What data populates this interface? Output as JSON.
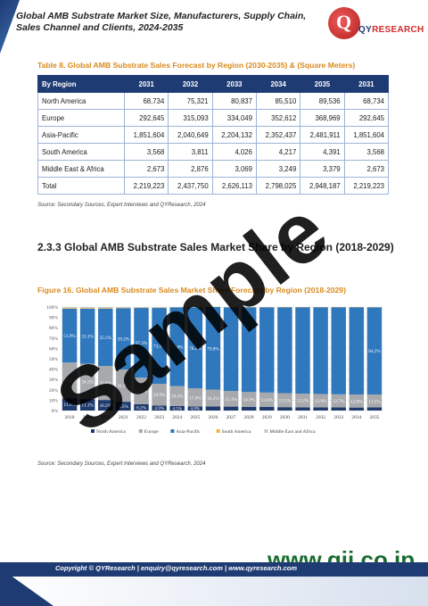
{
  "header": {
    "title": "Global AMB Substrate Market Size, Manufacturers, Supply Chain, Sales Channel and Clients, 2024-2035",
    "logo_q": "Q",
    "logo_brand_a": "QY",
    "logo_brand_b": "RESEARCH"
  },
  "table8": {
    "title": "Table 8.  Global AMB Substrate Sales Forecast by Region (2030-2035) & (Square Meters)",
    "columns": [
      "By Region",
      "2031",
      "2032",
      "2033",
      "2034",
      "2035",
      "2031"
    ],
    "rows": [
      [
        "North America",
        "68,734",
        "75,321",
        "80,837",
        "85,510",
        "89,536",
        "68,734"
      ],
      [
        "Europe",
        "292,645",
        "315,093",
        "334,049",
        "352,612",
        "368,969",
        "292,645"
      ],
      [
        "Asia-Pacific",
        "1,851,604",
        "2,040,649",
        "2,204,132",
        "2,352,437",
        "2,481,911",
        "1,851,604"
      ],
      [
        "South America",
        "3,568",
        "3,811",
        "4,026",
        "4,217",
        "4,391",
        "3,568"
      ],
      [
        "Middle East & Africa",
        "2,673",
        "2,876",
        "3,069",
        "3,249",
        "3,379",
        "2,673"
      ],
      [
        "Total",
        "2,219,223",
        "2,437,750",
        "2,626,113",
        "2,798,025",
        "2,948,187",
        "2,219,223"
      ]
    ],
    "source": "Source: Secondary Sources, Expert Interviews and QYResearch, 2024"
  },
  "section": {
    "title": "2.3.3 Global AMB Substrate Sales Market Share by Region (2018-2029)"
  },
  "figure16": {
    "title": "Figure 16.  Global AMB Substrate Sales Market Share Forecast by Region (2018-2029)",
    "source": "Source: Secondary Sources, Expert Interviews and QYResearch, 2024"
  },
  "chart_data": {
    "type": "bar",
    "stacked": true,
    "categories": [
      "2018",
      "2019",
      "2020",
      "2021",
      "2022",
      "2023",
      "2024",
      "2025",
      "2026",
      "2027",
      "2028",
      "2029",
      "2030",
      "2031",
      "2032",
      "2033",
      "2034",
      "2035"
    ],
    "ylim": [
      0,
      100
    ],
    "yticks": [
      "0%",
      "10%",
      "20%",
      "30%",
      "40%",
      "50%",
      "60%",
      "70%",
      "80%",
      "90%",
      "100%"
    ],
    "legend_position": "bottom",
    "series": [
      {
        "name": "North America",
        "color": "#1f3b6e",
        "values": [
          11.9,
          11.1,
          10.2,
          8.5,
          6.2,
          4.9,
          4.5,
          4.0,
          4.0,
          3.8,
          3.6,
          3.5,
          3.3,
          3.1,
          3.1,
          3.0,
          2.9,
          3.0
        ],
        "labels": [
          "11.9%",
          "11.1%",
          "10.2%",
          "8.5%",
          "6.2%",
          "4.9%",
          "4.5%",
          "4.0%",
          "",
          "",
          "",
          "",
          "",
          "",
          "",
          "",
          "",
          ""
        ]
      },
      {
        "name": "Europe",
        "color": "#a7a9ac",
        "values": [
          34.5,
          34.2,
          32.8,
          31.2,
          25.6,
          20.9,
          19.1,
          17.4,
          16.2,
          15.1,
          14.3,
          13.9,
          13.5,
          13.2,
          12.9,
          12.7,
          12.6,
          12.5
        ],
        "labels": [
          "34.5%",
          "34.2%",
          "32.8%",
          "31.2%",
          "25.6%",
          "20.9%",
          "19.1%",
          "17.4%",
          "16.2%",
          "15.1%",
          "14.3%",
          "13.9%",
          "13.5%",
          "13.2%",
          "12.9%",
          "12.7%",
          "12.6%",
          "12.5%"
        ]
      },
      {
        "name": "Asia-Pacific",
        "color": "#2f78bd",
        "values": [
          51.9,
          53.1,
          55.5,
          59.2,
          67.3,
          73.3,
          76.0,
          78.2,
          79.8,
          80.8,
          81.8,
          82.3,
          83.0,
          83.5,
          83.8,
          84.1,
          84.3,
          84.2
        ],
        "labels": [
          "51.9%",
          "53.1%",
          "55.5%",
          "59.2%",
          "67.3%",
          "73.3%",
          "76.0%",
          "78.2%",
          "79.8%",
          "",
          "",
          "",
          "",
          "",
          "",
          "",
          "",
          "84.2%"
        ]
      },
      {
        "name": "South America",
        "color": "#f3b23d",
        "values": [
          0.6,
          0.6,
          0.5,
          0.4,
          0.3,
          0.3,
          0.2,
          0.2,
          0.2,
          0.2,
          0.2,
          0.2,
          0.2,
          0.2,
          0.2,
          0.2,
          0.2,
          0.2
        ]
      },
      {
        "name": "Middle East and Africa",
        "color": "#c7c8ca",
        "values": [
          1.1,
          1.0,
          1.0,
          0.7,
          0.6,
          0.6,
          0.2,
          0.2,
          -0.2,
          0.1,
          0.1,
          0.1,
          0.0,
          0.0,
          0.0,
          0.0,
          0.0,
          0.1
        ]
      }
    ]
  },
  "watermark": "Sample",
  "gii_mark": "www.gii.co.jp",
  "footer": {
    "text": "Copyright © QYResearch | enquiry@qyresearch.com | www.qyresearch.com"
  }
}
